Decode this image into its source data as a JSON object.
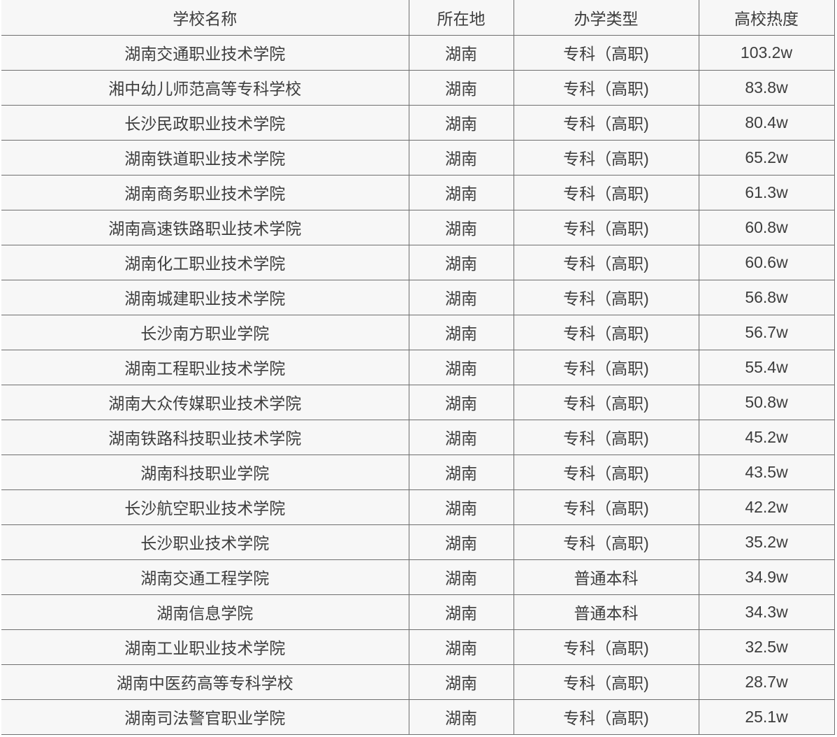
{
  "colors": {
    "page_bg": "#ffffff",
    "cell_bg": "#f7f7f7",
    "border": "#6f6f6f",
    "text": "#3d3d3d"
  },
  "chart_data": {
    "type": "table",
    "columns": [
      "学校名称",
      "所在地",
      "办学类型",
      "高校热度"
    ],
    "rows": [
      [
        "湖南交通职业技术学院",
        "湖南",
        "专科（高职)",
        "103.2w"
      ],
      [
        "湘中幼儿师范高等专科学校",
        "湖南",
        "专科（高职)",
        "83.8w"
      ],
      [
        "长沙民政职业技术学院",
        "湖南",
        "专科（高职)",
        "80.4w"
      ],
      [
        "湖南铁道职业技术学院",
        "湖南",
        "专科（高职)",
        "65.2w"
      ],
      [
        "湖南商务职业技术学院",
        "湖南",
        "专科（高职)",
        "61.3w"
      ],
      [
        "湖南高速铁路职业技术学院",
        "湖南",
        "专科（高职)",
        "60.8w"
      ],
      [
        "湖南化工职业技术学院",
        "湖南",
        "专科（高职)",
        "60.6w"
      ],
      [
        "湖南城建职业技术学院",
        "湖南",
        "专科（高职)",
        "56.8w"
      ],
      [
        "长沙南方职业学院",
        "湖南",
        "专科（高职)",
        "56.7w"
      ],
      [
        "湖南工程职业技术学院",
        "湖南",
        "专科（高职)",
        "55.4w"
      ],
      [
        "湖南大众传媒职业技术学院",
        "湖南",
        "专科（高职)",
        "50.8w"
      ],
      [
        "湖南铁路科技职业技术学院",
        "湖南",
        "专科（高职)",
        "45.2w"
      ],
      [
        "湖南科技职业学院",
        "湖南",
        "专科（高职)",
        "43.5w"
      ],
      [
        "长沙航空职业技术学院",
        "湖南",
        "专科（高职)",
        "42.2w"
      ],
      [
        "长沙职业技术学院",
        "湖南",
        "专科（高职)",
        "35.2w"
      ],
      [
        "湖南交通工程学院",
        "湖南",
        "普通本科",
        "34.9w"
      ],
      [
        "湖南信息学院",
        "湖南",
        "普通本科",
        "34.3w"
      ],
      [
        "湖南工业职业技术学院",
        "湖南",
        "专科（高职)",
        "32.5w"
      ],
      [
        "湖南中医药高等专科学校",
        "湖南",
        "专科（高职)",
        "28.7w"
      ],
      [
        "湖南司法警官职业学院",
        "湖南",
        "专科（高职)",
        "25.1w"
      ]
    ]
  }
}
